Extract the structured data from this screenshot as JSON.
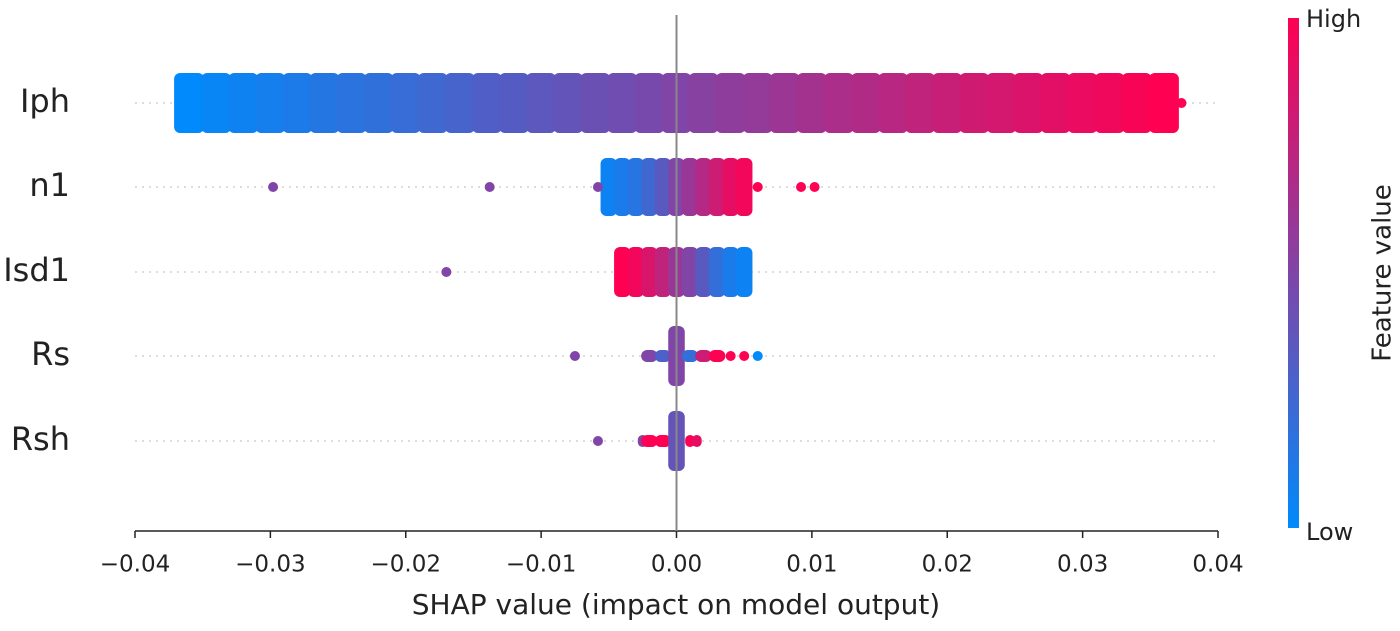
{
  "chart_data": {
    "type": "beeswarm",
    "xlabel": "SHAP value (impact on model output)",
    "xlim": [
      -0.04,
      0.04
    ],
    "xticks": [
      {
        "value": -0.04,
        "label": "−0.04"
      },
      {
        "value": -0.03,
        "label": "−0.03"
      },
      {
        "value": -0.02,
        "label": "−0.02"
      },
      {
        "value": -0.01,
        "label": "−0.01"
      },
      {
        "value": 0,
        "label": "0.00"
      },
      0.01,
      0.02,
      0.03,
      0.04
    ],
    "colorbar": {
      "label": "Feature value",
      "high": "High",
      "low": "Low",
      "colors": [
        "#008afb",
        "#ff0052"
      ]
    },
    "series": [
      {
        "name": "Iph",
        "values": [
          -0.036,
          -0.034,
          -0.032,
          -0.03,
          -0.028,
          -0.026,
          -0.024,
          -0.022,
          -0.02,
          -0.018,
          -0.016,
          -0.014,
          -0.012,
          -0.01,
          -0.008,
          -0.006,
          -0.004,
          -0.002,
          0,
          0.002,
          0.004,
          0.006,
          0.008,
          0.01,
          0.012,
          0.014,
          0.016,
          0.018,
          0.02,
          0.022,
          0.024,
          0.026,
          0.028,
          0.03,
          0.032,
          0.034,
          0.036
        ],
        "feature_values": [
          0,
          0.03,
          0.06,
          0.08,
          0.11,
          0.14,
          0.17,
          0.19,
          0.22,
          0.25,
          0.28,
          0.31,
          0.33,
          0.36,
          0.39,
          0.42,
          0.44,
          0.47,
          0.5,
          0.53,
          0.56,
          0.58,
          0.61,
          0.64,
          0.67,
          0.69,
          0.72,
          0.75,
          0.78,
          0.81,
          0.83,
          0.86,
          0.89,
          0.92,
          0.94,
          0.97,
          1
        ],
        "outliers": {
          "values": [
            0.0373
          ],
          "feature_values": [
            1
          ]
        }
      },
      {
        "name": "n1",
        "values": [
          -0.005,
          -0.004,
          -0.003,
          -0.002,
          -0.001,
          0,
          0.001,
          0.002,
          0.003,
          0.004,
          0.005
        ],
        "feature_values": [
          0.05,
          0.1,
          0.15,
          0.25,
          0.35,
          0.5,
          0.6,
          0.7,
          0.8,
          0.9,
          0.95
        ],
        "outliers": {
          "values": [
            -0.0298,
            -0.0138,
            -0.0058,
            0.006,
            0.0092,
            0.0102
          ],
          "feature_values": [
            0.5,
            0.5,
            0.5,
            1,
            1,
            1
          ]
        }
      },
      {
        "name": "Isd1",
        "values": [
          -0.004,
          -0.003,
          -0.002,
          -0.001,
          0,
          0.001,
          0.002,
          0.003,
          0.004,
          0.005
        ],
        "feature_values": [
          1,
          0.95,
          0.85,
          0.75,
          0.6,
          0.5,
          0.35,
          0.2,
          0.1,
          0.05
        ],
        "outliers": {
          "values": [
            -0.017
          ],
          "feature_values": [
            0.5
          ]
        }
      },
      {
        "name": "Rs",
        "values": [
          -0.002,
          -0.001,
          0,
          0.001,
          0.002,
          0.003
        ],
        "feature_values": [
          0.5,
          0.3,
          0.5,
          0.2,
          0.8,
          1
        ],
        "outliers": {
          "values": [
            -0.0075,
            0.004,
            0.005,
            0.006
          ],
          "feature_values": [
            0.5,
            1,
            1,
            0
          ]
        }
      },
      {
        "name": "Rsh",
        "values": [
          -0.0025,
          -0.002,
          -0.001,
          0,
          0.001,
          0.0015
        ],
        "feature_values": [
          0.5,
          1,
          1,
          0.4,
          1,
          0.9
        ],
        "outliers": {
          "values": [
            -0.0058
          ],
          "feature_values": [
            0.5
          ]
        }
      }
    ]
  }
}
